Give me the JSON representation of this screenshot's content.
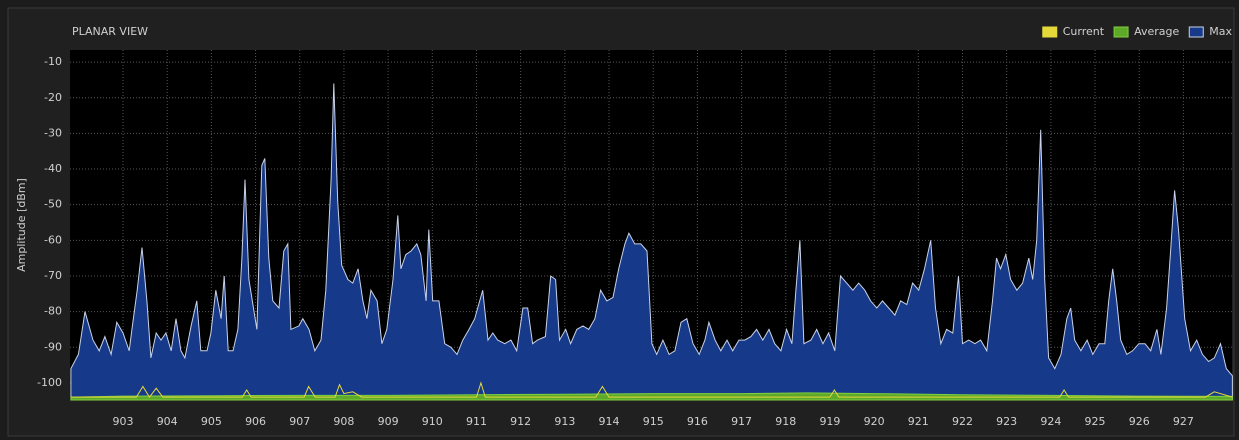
{
  "chart_data": {
    "type": "area",
    "title": "PLANAR VIEW",
    "y_label": "Amplitude [dBm]",
    "xlim": [
      901.8,
      928.1
    ],
    "ylim": [
      -104.8,
      -6.6
    ],
    "xticks": [
      903,
      904,
      905,
      906,
      907,
      908,
      909,
      910,
      911,
      912,
      913,
      914,
      915,
      916,
      917,
      918,
      919,
      920,
      921,
      922,
      923,
      924,
      925,
      926,
      927
    ],
    "yticks": [
      -10,
      -20,
      -30,
      -40,
      -50,
      -60,
      -70,
      -80,
      -90,
      -100
    ],
    "grid": true,
    "legend": "top-right",
    "series": [
      {
        "name": "Current",
        "color": "#e6d83a",
        "x": [
          901.82,
          903.3,
          903.45,
          903.6,
          903.75,
          903.9,
          905.7,
          905.8,
          905.9,
          907.1,
          907.2,
          907.35,
          907.8,
          907.9,
          908.0,
          908.2,
          908.4,
          911.0,
          911.1,
          911.2,
          913.7,
          913.85,
          914.0,
          919.0,
          919.1,
          919.2,
          924.2,
          924.3,
          924.4,
          927.5,
          927.7,
          928.11
        ],
        "values": [
          -104,
          -104,
          -101,
          -104,
          -101.5,
          -104,
          -104,
          -102,
          -104,
          -104,
          -101,
          -104,
          -104,
          -100.5,
          -103,
          -102.5,
          -104,
          -104,
          -100,
          -104,
          -104,
          -101,
          -104,
          -104,
          -102,
          -104,
          -104,
          -102,
          -104,
          -104,
          -102.5,
          -104
        ]
      },
      {
        "name": "Average",
        "color": "#5ea82a",
        "x": [
          901.82,
          903,
          905,
          907,
          909,
          911,
          913,
          915,
          917,
          918.5,
          920,
          922,
          924,
          926,
          928.11
        ],
        "values": [
          -104,
          -103.7,
          -103.6,
          -103.5,
          -103.5,
          -103.3,
          -103.2,
          -103,
          -103,
          -102.8,
          -103,
          -103.3,
          -103.5,
          -103.7,
          -103.8
        ]
      },
      {
        "name": "Max",
        "color": "#16398a",
        "x": [
          901.82,
          901.99,
          902.14,
          902.32,
          902.46,
          902.59,
          902.73,
          902.86,
          903.0,
          903.14,
          903.2,
          903.32,
          903.43,
          903.54,
          903.63,
          903.75,
          903.86,
          903.97,
          904.09,
          904.2,
          904.31,
          904.4,
          904.54,
          904.67,
          904.76,
          904.9,
          904.99,
          905.1,
          905.22,
          905.29,
          905.38,
          905.49,
          905.6,
          905.69,
          905.76,
          905.85,
          906.03,
          906.14,
          906.21,
          906.3,
          906.39,
          906.53,
          906.64,
          906.73,
          906.8,
          906.98,
          907.07,
          907.21,
          907.34,
          907.48,
          907.59,
          907.71,
          907.77,
          907.86,
          907.95,
          908.09,
          908.2,
          908.32,
          908.43,
          908.52,
          908.61,
          908.75,
          908.86,
          908.97,
          909.11,
          909.22,
          909.29,
          909.4,
          909.52,
          909.65,
          909.74,
          909.86,
          909.92,
          910.01,
          910.15,
          910.28,
          910.42,
          910.56,
          910.69,
          910.83,
          910.96,
          911.14,
          911.26,
          911.37,
          911.48,
          911.64,
          911.78,
          911.91,
          912.05,
          912.16,
          912.27,
          912.38,
          912.56,
          912.68,
          912.79,
          912.88,
          913.02,
          913.13,
          913.27,
          913.41,
          913.54,
          913.68,
          913.81,
          913.95,
          914.09,
          914.22,
          914.36,
          914.45,
          914.58,
          914.72,
          914.86,
          914.97,
          915.08,
          915.22,
          915.36,
          915.49,
          915.63,
          915.76,
          915.9,
          916.04,
          916.17,
          916.26,
          916.4,
          916.53,
          916.67,
          916.8,
          916.94,
          917.07,
          917.21,
          917.34,
          917.48,
          917.62,
          917.75,
          917.89,
          918.02,
          918.14,
          918.23,
          918.32,
          918.41,
          918.57,
          918.7,
          918.84,
          918.97,
          919.11,
          919.24,
          919.38,
          919.52,
          919.65,
          919.79,
          919.92,
          920.06,
          920.19,
          920.33,
          920.47,
          920.6,
          920.74,
          920.87,
          921.01,
          921.14,
          921.28,
          921.39,
          921.51,
          921.64,
          921.78,
          921.91,
          922.0,
          922.14,
          922.28,
          922.41,
          922.55,
          922.68,
          922.77,
          922.86,
          922.98,
          923.09,
          923.23,
          923.36,
          923.5,
          923.59,
          923.68,
          923.77,
          923.86,
          923.95,
          924.09,
          924.23,
          924.36,
          924.45,
          924.54,
          924.68,
          924.82,
          924.95,
          925.09,
          925.22,
          925.31,
          925.4,
          925.49,
          925.58,
          925.72,
          925.85,
          925.99,
          926.13,
          926.26,
          926.4,
          926.49,
          926.62,
          926.71,
          926.8,
          926.89,
          927.03,
          927.16,
          927.3,
          927.43,
          927.57,
          927.7,
          927.84,
          927.97,
          928.11
        ],
        "values": [
          -96,
          -92,
          -80,
          -88,
          -91,
          -87,
          -92,
          -83,
          -86,
          -91,
          -85,
          -74,
          -62,
          -77,
          -93,
          -86,
          -88,
          -86,
          -91,
          -82,
          -91,
          -93,
          -84,
          -77,
          -91,
          -91,
          -86,
          -74,
          -82,
          -70,
          -91,
          -91,
          -85,
          -65,
          -43,
          -71,
          -85,
          -39,
          -37,
          -65,
          -77,
          -79,
          -63,
          -61,
          -85,
          -84,
          -82,
          -85,
          -91,
          -88,
          -74,
          -43,
          -16,
          -49,
          -67,
          -71,
          -72,
          -68,
          -77,
          -82,
          -74,
          -77,
          -89,
          -85,
          -71,
          -53,
          -68,
          -64,
          -63,
          -61,
          -64,
          -77,
          -57,
          -77,
          -77,
          -89,
          -90,
          -92,
          -88,
          -85,
          -82,
          -74,
          -88,
          -86,
          -88,
          -89,
          -88,
          -91,
          -79,
          -79,
          -89,
          -88,
          -87,
          -70,
          -71,
          -88,
          -85,
          -89,
          -85,
          -84,
          -85,
          -82,
          -74,
          -77,
          -76,
          -68,
          -61,
          -58,
          -61,
          -61,
          -63,
          -89,
          -92,
          -88,
          -92,
          -91,
          -83,
          -82,
          -89,
          -92,
          -88,
          -83,
          -88,
          -91,
          -88,
          -91,
          -88,
          -88,
          -87,
          -85,
          -88,
          -85,
          -89,
          -91,
          -85,
          -89,
          -74,
          -60,
          -89,
          -88,
          -85,
          -89,
          -86,
          -91,
          -70,
          -72,
          -74,
          -72,
          -74,
          -77,
          -79,
          -77,
          -79,
          -81,
          -77,
          -78,
          -72,
          -74,
          -68,
          -60,
          -79,
          -89,
          -85,
          -86,
          -70,
          -89,
          -88,
          -89,
          -88,
          -91,
          -77,
          -65,
          -68,
          -64,
          -71,
          -74,
          -72,
          -65,
          -71,
          -60,
          -29,
          -71,
          -93,
          -96,
          -92,
          -82,
          -79,
          -88,
          -91,
          -88,
          -92,
          -89,
          -89,
          -77,
          -68,
          -77,
          -88,
          -92,
          -91,
          -89,
          -89,
          -91,
          -85,
          -92,
          -79,
          -63,
          -46,
          -57,
          -82,
          -91,
          -88,
          -92,
          -94,
          -93,
          -89,
          -96,
          -98
        ]
      }
    ]
  }
}
